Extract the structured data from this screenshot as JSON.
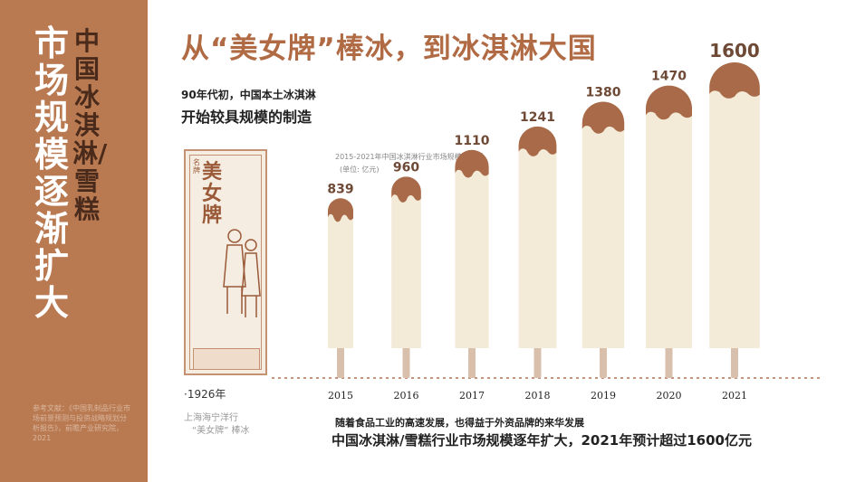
{
  "sidebar": {
    "title_main": "市场规模逐渐扩大",
    "title_sub": "中国冰淇淋/雪糕",
    "references": "参考文献：《中国乳制品行业市场前景预测与投资战略规划分析报告》，前瞻产业研究院，2021"
  },
  "header": {
    "title": "从“美女牌”棒冰，到冰淇淋大国",
    "intro_line1": "90年代初，中国本土冰淇淋",
    "intro_line2": "开始较具规模的制造"
  },
  "poster": {
    "small_text": "名牌",
    "brand": "美女牌",
    "year": "·1926年",
    "caption_line1": "上海海宁洋行",
    "caption_line2": "“美女牌” 棒冰"
  },
  "chart_data": {
    "type": "bar",
    "title": "2015-2021年中国冰淇淋行业市场规模及预测",
    "unit": "(单位: 亿元)",
    "categories": [
      "2015",
      "2016",
      "2017",
      "2018",
      "2019",
      "2020",
      "2021"
    ],
    "values": [
      839,
      960,
      1110,
      1241,
      1380,
      1470,
      1600
    ],
    "ylim": [
      0,
      1700
    ],
    "grid": false,
    "colors": {
      "stick": "#f3ead8",
      "chocolate": "#a86a48",
      "handle": "#d8c0ad",
      "baseline": "#b07050",
      "label": "#6e4a36"
    }
  },
  "footer": {
    "line1": "随着食品工业的高速发展，也得益于外资品牌的来华发展",
    "line2": "中国冰淇淋/雪糕行业市场规模逐年扩大，2021年预计超过1600亿元"
  }
}
